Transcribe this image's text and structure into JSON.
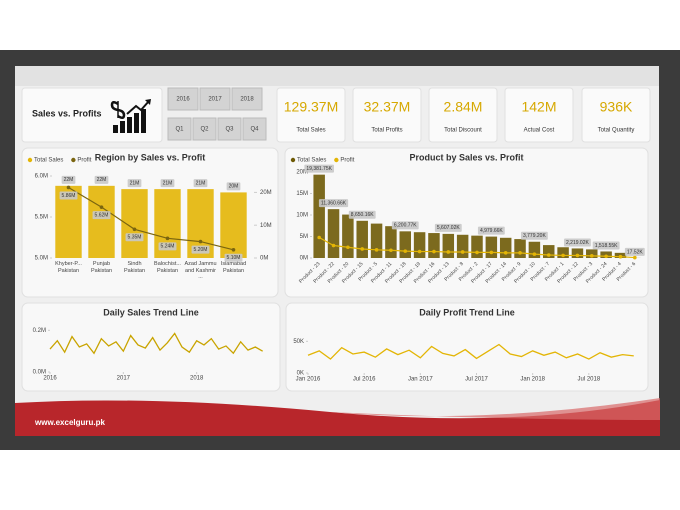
{
  "header": {
    "title": "Sales vs. Profits"
  },
  "filters": {
    "years": [
      "2016",
      "2017",
      "2018"
    ],
    "quarters": [
      "Q1",
      "Q2",
      "Q3",
      "Q4"
    ]
  },
  "kpis": [
    {
      "value": "129.37M",
      "label": "Total Sales"
    },
    {
      "value": "32.37M",
      "label": "Total Profits"
    },
    {
      "value": "2.84M",
      "label": "Total Discount"
    },
    {
      "value": "142M",
      "label": "Actual Cost"
    },
    {
      "value": "936K",
      "label": "Total Quantity"
    }
  ],
  "footer": {
    "text": "www.excelguru.pk"
  },
  "chart_data": [
    {
      "type": "combo",
      "title": "Region by Sales vs. Profit",
      "categories": [
        "Khyber-P... Pakistan",
        "Punjab Pakistan",
        "Sindh Pakistan",
        "Balochist... Pakistan",
        "Azad Jammu and Kashmir ...",
        "Islamabad Pakistan"
      ],
      "series": [
        {
          "name": "Total Sales",
          "type": "bar",
          "axis": "y2",
          "color": "#e3b505",
          "values": [
            22000000,
            22000000,
            21000000,
            21000000,
            21000000,
            20000000
          ],
          "value_labels": [
            "22M",
            "22M",
            "21M",
            "21M",
            "21M",
            "20M"
          ]
        },
        {
          "name": "Profit",
          "type": "line",
          "color": "#7a6510",
          "values": [
            5860000,
            5620000,
            5350000,
            5240000,
            5200000,
            5100000
          ],
          "value_labels": [
            "5.86M",
            "5.62M",
            "5.35M",
            "5.24M",
            "5.20M",
            "5.10M"
          ]
        }
      ],
      "ylim": [
        5000000,
        6000000
      ],
      "yticks": [
        {
          "value": 5000000,
          "label": "5.0M"
        },
        {
          "value": 5500000,
          "label": "5.5M"
        },
        {
          "value": 6000000,
          "label": "6.0M"
        }
      ],
      "y2lim": [
        0,
        25000000
      ],
      "y2ticks": [
        {
          "value": 0,
          "label": "0M"
        },
        {
          "value": 10000000,
          "label": "10M"
        },
        {
          "value": 20000000,
          "label": "20M"
        }
      ],
      "legend": "top-left"
    },
    {
      "type": "combo",
      "title": "Product by Sales vs. Profit",
      "categories": [
        "Product - 23",
        "Product - 22",
        "Product - 20",
        "Product - 15",
        "Product - 5",
        "Product - 11",
        "Product - 18",
        "Product - 19",
        "Product - 16",
        "Product - 13",
        "Product - 8",
        "Product - 2",
        "Product - 17",
        "Product - 14",
        "Product - 9",
        "Product - 10",
        "Product - 7",
        "Product - 1",
        "Product - 12",
        "Product - 3",
        "Product - 24",
        "Product - 4",
        "Product - 6"
      ],
      "series": [
        {
          "name": "Total Sales",
          "type": "bar",
          "color": "#6e5a06",
          "values": [
            19381750,
            11360660,
            10100000,
            8650160,
            8000000,
            7400000,
            6200770,
            6000000,
            5800000,
            5607020,
            5400000,
            5200000,
            4979660,
            4700000,
            4400000,
            3779200,
            3000000,
            2500000,
            2219020,
            2000000,
            1518550,
            1200000,
            17520
          ],
          "value_labels": [
            "19,381.75K",
            "11,360.66K",
            null,
            "8,650.16K",
            null,
            null,
            "6,200.77K",
            null,
            null,
            "5,607.02K",
            null,
            null,
            "4,979.66K",
            null,
            null,
            "3,779.20K",
            null,
            null,
            "2,219.02K",
            null,
            "1,518.55K",
            null,
            "17.52K"
          ]
        },
        {
          "name": "Profit",
          "type": "line",
          "color": "#e3b505",
          "values": [
            4770000,
            2900000,
            2500000,
            2100000,
            1900000,
            1800000,
            1600000,
            1500000,
            1500000,
            1400000,
            1400000,
            1300000,
            1300000,
            1200000,
            1200000,
            900000,
            700000,
            600000,
            600000,
            500000,
            400000,
            300000,
            100000
          ]
        }
      ],
      "ylim": [
        0,
        20000000
      ],
      "yticks": [
        {
          "value": 0,
          "label": "0M"
        },
        {
          "value": 5000000,
          "label": "5M"
        },
        {
          "value": 10000000,
          "label": "10M"
        },
        {
          "value": 15000000,
          "label": "15M"
        },
        {
          "value": 20000000,
          "label": "20M"
        }
      ],
      "legend": "top-left"
    },
    {
      "type": "line",
      "title": "Daily Sales Trend Line",
      "color": "#c9a400",
      "x": [
        2016.0,
        2016.1,
        2016.2,
        2016.3,
        2016.4,
        2016.5,
        2016.6,
        2016.7,
        2016.8,
        2016.9,
        2017.0,
        2017.1,
        2017.2,
        2017.3,
        2017.4,
        2017.5,
        2017.6,
        2017.7,
        2017.8,
        2017.9,
        2018.0,
        2018.1,
        2018.2,
        2018.3,
        2018.4,
        2018.5,
        2018.6,
        2018.7,
        2018.8,
        2018.9
      ],
      "values": [
        110000,
        150000,
        95000,
        170000,
        120000,
        135000,
        90000,
        160000,
        125000,
        145000,
        100000,
        175000,
        130000,
        115000,
        165000,
        105000,
        140000,
        185000,
        120000,
        95000,
        150000,
        130000,
        160000,
        110000,
        125000,
        90000,
        145000,
        105000,
        120000,
        100000
      ],
      "xlim": [
        2016,
        2019
      ],
      "xticks": [
        2016,
        2017,
        2018
      ],
      "ylim": [
        0,
        240000
      ],
      "yticks": [
        {
          "value": 0,
          "label": "0.0M"
        },
        {
          "value": 200000,
          "label": "0.2M"
        }
      ]
    },
    {
      "type": "line",
      "title": "Daily Profit Trend Line",
      "color": "#e3b505",
      "x": [
        2016.0,
        2016.1,
        2016.2,
        2016.3,
        2016.4,
        2016.5,
        2016.6,
        2016.7,
        2016.8,
        2016.9,
        2017.0,
        2017.1,
        2017.2,
        2017.3,
        2017.4,
        2017.5,
        2017.6,
        2017.7,
        2017.8,
        2017.9,
        2018.0,
        2018.1,
        2018.2,
        2018.3,
        2018.4,
        2018.5,
        2018.6,
        2018.7,
        2018.8,
        2018.9
      ],
      "values": [
        28000,
        35000,
        22000,
        40000,
        30000,
        33000,
        25000,
        38000,
        29000,
        36000,
        24000,
        42000,
        31000,
        27000,
        37000,
        23000,
        34000,
        45000,
        30000,
        26000,
        35000,
        28000,
        33000,
        24000,
        30000,
        22000,
        32000,
        25000,
        29000,
        27000
      ],
      "xlim": [
        2016,
        2019
      ],
      "xticks": [
        {
          "value": 2016,
          "label": "Jan 2016"
        },
        {
          "value": 2016.5,
          "label": "Jul 2016"
        },
        {
          "value": 2017,
          "label": "Jan 2017"
        },
        {
          "value": 2017.5,
          "label": "Jul 2017"
        },
        {
          "value": 2018,
          "label": "Jan 2018"
        },
        {
          "value": 2018.5,
          "label": "Jul 2018"
        }
      ],
      "ylim": [
        0,
        60000
      ],
      "yticks": [
        {
          "value": 0,
          "label": "0K"
        },
        {
          "value": 50000,
          "label": "50K"
        }
      ]
    }
  ]
}
